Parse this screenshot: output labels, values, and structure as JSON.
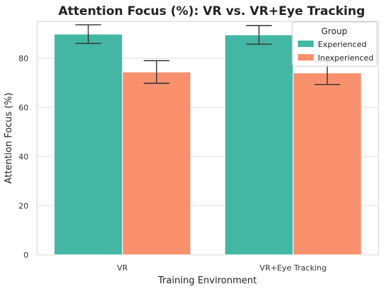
{
  "chart_data": {
    "type": "bar",
    "title": "Attention Focus (%): VR vs. VR+Eye Tracking",
    "xlabel": "Training Environment",
    "ylabel": "Attention Focus (%)",
    "categories": [
      "VR",
      "VR+Eye Tracking"
    ],
    "ylim": [
      0,
      95
    ],
    "yticks": [
      0,
      20,
      40,
      60,
      80
    ],
    "grid": true,
    "legend": {
      "title": "Group",
      "placement": "top-right"
    },
    "series": [
      {
        "name": "Experienced",
        "color": "#43b7a3",
        "values": [
          89.8,
          89.5
        ],
        "error": [
          3.8,
          3.8
        ]
      },
      {
        "name": "Inexperienced",
        "color": "#f9916e",
        "values": [
          74.4,
          74.0
        ],
        "error": [
          4.6,
          4.7
        ]
      }
    ]
  }
}
